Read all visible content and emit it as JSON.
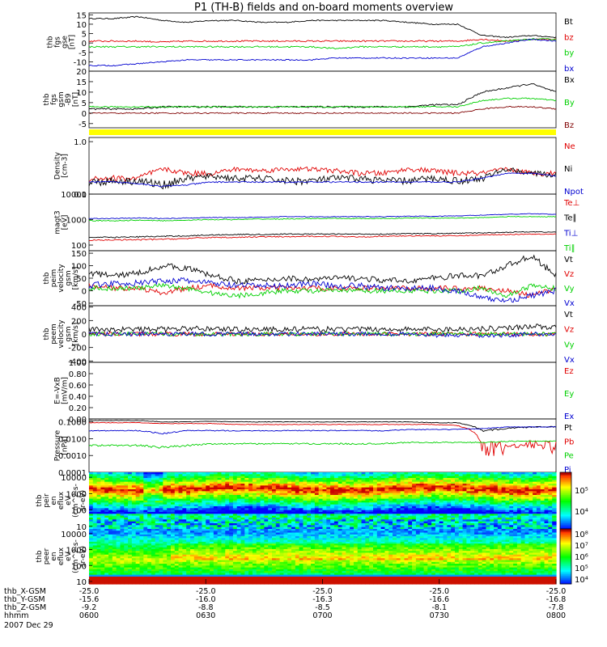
{
  "title": "P1 (TH-B) fields and on-board moments overview",
  "colors": {
    "black": "#000000",
    "red": "#e00000",
    "green": "#00d000",
    "blue": "#0000d0",
    "darkred": "#800000",
    "yellow": "#ffff00"
  },
  "chart_data": [
    {
      "id": "fgs",
      "type": "line",
      "ylabel": [
        "thb",
        "fgs",
        "gse",
        "[nT]"
      ],
      "ylim": [
        -15,
        16
      ],
      "yticks": [
        "-10",
        "-5",
        "0",
        "5",
        "10",
        "15"
      ],
      "ytick_values": [
        -10,
        -5,
        0,
        5,
        10,
        15
      ],
      "series": [
        {
          "name": "Bt",
          "color": "black",
          "base": [
            13,
            13,
            14,
            12,
            11,
            12,
            12,
            11,
            11,
            12,
            12,
            12,
            12,
            11,
            10,
            10,
            4,
            3,
            4,
            3
          ],
          "noise": 0.3
        },
        {
          "name": "bz",
          "color": "red",
          "base": [
            1,
            1,
            1,
            0.5,
            1,
            1,
            1,
            1,
            1,
            1,
            1,
            1,
            1,
            1,
            1,
            1,
            2,
            1,
            2,
            2
          ],
          "noise": 0.4
        },
        {
          "name": "by",
          "color": "green",
          "base": [
            -2,
            -2,
            -2,
            -2,
            -2,
            -2,
            -2,
            -2,
            -2,
            -2,
            -3,
            -2,
            -2,
            -2,
            -2,
            -2,
            0,
            1,
            2,
            2
          ],
          "noise": 0.4
        },
        {
          "name": "bx",
          "color": "blue",
          "base": [
            -12,
            -12,
            -11,
            -10,
            -9,
            -9,
            -9,
            -9,
            -9,
            -9,
            -8,
            -8,
            -8,
            -8,
            -8,
            -8,
            -2,
            0,
            2,
            1
          ],
          "noise": 0.3
        }
      ]
    },
    {
      "id": "fgs2",
      "type": "line",
      "ylabel": [
        "thb",
        "fgs",
        "gsm",
        "-B9",
        "[nT]"
      ],
      "ylim": [
        -7,
        20
      ],
      "yticks": [
        "-5",
        "0",
        "5",
        "10",
        "15",
        "20"
      ],
      "ytick_values": [
        -5,
        0,
        5,
        10,
        15,
        20
      ],
      "series": [
        {
          "name": "Bx",
          "color": "black",
          "base": [
            2,
            2,
            2,
            3,
            3,
            3,
            3,
            3,
            3,
            3,
            3,
            3,
            3,
            3,
            4,
            4,
            10,
            12,
            14,
            10
          ],
          "noise": 0.4
        },
        {
          "name": "By",
          "color": "green",
          "base": [
            3,
            3,
            3,
            3,
            3,
            3,
            3,
            3,
            3,
            3,
            3,
            3,
            3,
            3,
            3,
            3,
            6,
            7,
            7,
            6
          ],
          "noise": 0.3
        },
        {
          "name": "Bz",
          "color": "darkred",
          "base": [
            0,
            0,
            0,
            0,
            0,
            0,
            0,
            0,
            0,
            0,
            0,
            0,
            0,
            0,
            0,
            0,
            2,
            3,
            3,
            2
          ],
          "noise": 0.3
        }
      ]
    },
    {
      "id": "density",
      "type": "line",
      "log": true,
      "ylabel": [
        "Density",
        "[cm-3]"
      ],
      "ylim": [
        0.1,
        1.2
      ],
      "yticks": [
        "1.0",
        "0.1"
      ],
      "ytick_values": [
        1.0,
        0.1
      ],
      "series": [
        {
          "name": "Ne",
          "color": "red",
          "base": [
            0.2,
            0.2,
            0.2,
            0.3,
            0.25,
            0.25,
            0.3,
            0.28,
            0.3,
            0.3,
            0.28,
            0.25,
            0.25,
            0.3,
            0.28,
            0.25,
            0.25,
            0.3,
            0.25,
            0.25
          ],
          "noise": 0.03
        },
        {
          "name": "Ni",
          "color": "black",
          "base": [
            0.17,
            0.18,
            0.18,
            0.15,
            0.2,
            0.22,
            0.2,
            0.2,
            0.18,
            0.18,
            0.2,
            0.2,
            0.18,
            0.18,
            0.2,
            0.18,
            0.2,
            0.3,
            0.25,
            0.23
          ],
          "noise": 0.03
        },
        {
          "name": "Npot",
          "color": "blue",
          "base": [
            0.17,
            0.17,
            0.16,
            0.14,
            0.15,
            0.17,
            0.17,
            0.17,
            0.17,
            0.17,
            0.17,
            0.17,
            0.17,
            0.17,
            0.17,
            0.17,
            0.2,
            0.25,
            0.25,
            0.22
          ],
          "noise": 0.005
        }
      ]
    },
    {
      "id": "temp",
      "type": "line",
      "log": true,
      "ylabel": [
        "magt3",
        "[eV]"
      ],
      "ylim": [
        60,
        10000
      ],
      "yticks": [
        "10000",
        "1000",
        "100"
      ],
      "ytick_values": [
        10000,
        1000,
        100
      ],
      "series": [
        {
          "name": "Te⊥",
          "color": "red",
          "base": [
            150,
            160,
            160,
            170,
            180,
            200,
            200,
            210,
            210,
            220,
            220,
            210,
            220,
            230,
            230,
            230,
            250,
            260,
            270,
            270
          ],
          "noise": 10
        },
        {
          "name": "Te∥",
          "color": "black",
          "base": [
            200,
            200,
            210,
            220,
            230,
            250,
            260,
            260,
            270,
            270,
            270,
            270,
            270,
            280,
            280,
            290,
            300,
            320,
            330,
            320
          ],
          "noise": 12
        },
        {
          "name": "Ti⊥",
          "color": "blue",
          "base": [
            1100,
            1100,
            1150,
            1100,
            1150,
            1200,
            1200,
            1250,
            1300,
            1300,
            1300,
            1300,
            1300,
            1350,
            1350,
            1400,
            1500,
            1600,
            1700,
            1600
          ],
          "noise": 40
        },
        {
          "name": "Ti∥",
          "color": "green",
          "base": [
            900,
            900,
            950,
            900,
            950,
            1000,
            1000,
            1050,
            1050,
            1100,
            1100,
            1100,
            1100,
            1150,
            1150,
            1150,
            1200,
            1300,
            1300,
            1300
          ],
          "noise": 40
        }
      ]
    },
    {
      "id": "peim",
      "type": "line",
      "ylabel": [
        "thb",
        "peim",
        "velocity",
        "gsm",
        "[km/s]"
      ],
      "ylim": [
        -60,
        160
      ],
      "yticks": [
        "-50",
        "0",
        "50",
        "100",
        "150"
      ],
      "ytick_values": [
        -50,
        0,
        50,
        100,
        150
      ],
      "series": [
        {
          "name": "Vt",
          "color": "black",
          "base": [
            70,
            60,
            70,
            100,
            90,
            60,
            40,
            40,
            50,
            45,
            50,
            50,
            40,
            40,
            50,
            60,
            60,
            100,
            140,
            60
          ],
          "noise": 12
        },
        {
          "name": "Vz",
          "color": "red",
          "base": [
            20,
            10,
            10,
            -10,
            10,
            20,
            10,
            10,
            10,
            10,
            10,
            10,
            10,
            10,
            10,
            10,
            10,
            0,
            -20,
            10
          ],
          "noise": 10
        },
        {
          "name": "Vy",
          "color": "green",
          "base": [
            10,
            10,
            10,
            20,
            10,
            -10,
            -20,
            -10,
            0,
            0,
            0,
            0,
            0,
            0,
            0,
            0,
            10,
            -20,
            20,
            10
          ],
          "noise": 10
        },
        {
          "name": "Vx",
          "color": "blue",
          "base": [
            20,
            30,
            30,
            40,
            40,
            30,
            20,
            20,
            20,
            30,
            20,
            20,
            10,
            10,
            10,
            0,
            -30,
            -40,
            -20,
            0
          ],
          "noise": 12
        }
      ]
    },
    {
      "id": "peem",
      "type": "line",
      "ylabel": [
        "thb",
        "peem",
        "velocity",
        "gsm",
        "[km/s]"
      ],
      "ylim": [
        -420,
        420
      ],
      "yticks": [
        "-400",
        "-200",
        "0",
        "200",
        "400"
      ],
      "ytick_values": [
        -400,
        -200,
        0,
        200,
        400
      ],
      "series": [
        {
          "name": "Vt",
          "color": "black",
          "base": [
            70,
            70,
            70,
            70,
            80,
            80,
            70,
            70,
            70,
            70,
            70,
            70,
            70,
            70,
            70,
            70,
            80,
            90,
            120,
            90
          ],
          "noise": 40
        },
        {
          "name": "Vz",
          "color": "red",
          "base": [
            0,
            0,
            0,
            0,
            0,
            0,
            0,
            0,
            0,
            0,
            0,
            0,
            0,
            0,
            0,
            0,
            0,
            0,
            0,
            0
          ],
          "noise": 30
        },
        {
          "name": "Vy",
          "color": "green",
          "base": [
            0,
            0,
            0,
            0,
            0,
            0,
            0,
            0,
            0,
            0,
            0,
            0,
            0,
            0,
            0,
            0,
            0,
            0,
            0,
            0
          ],
          "noise": 30
        },
        {
          "name": "Vx",
          "color": "blue",
          "base": [
            0,
            0,
            0,
            0,
            0,
            0,
            0,
            0,
            0,
            0,
            0,
            0,
            0,
            0,
            -20,
            -20,
            -30,
            -20,
            0,
            0
          ],
          "noise": 30
        }
      ]
    },
    {
      "id": "efield",
      "type": "line",
      "ylabel": [
        "E=-VxB",
        "[mV/m]"
      ],
      "ylim": [
        0,
        1
      ],
      "yticks": [
        "0.00",
        "0.20",
        "0.40",
        "0.60",
        "0.80",
        "1.00"
      ],
      "ytick_values": [
        0,
        0.2,
        0.4,
        0.6,
        0.8,
        1.0
      ],
      "series": [
        {
          "name": "Ez",
          "color": "red",
          "base": [],
          "noise": 0
        },
        {
          "name": "Ey",
          "color": "green",
          "base": [],
          "noise": 0
        },
        {
          "name": "Ex",
          "color": "blue",
          "base": [],
          "noise": 0
        }
      ]
    },
    {
      "id": "pressure",
      "type": "line",
      "log": true,
      "ylabel": [
        "Pressure",
        "[nPa]"
      ],
      "ylim": [
        0.0001,
        0.15
      ],
      "yticks": [
        "0.1000",
        "0.0100",
        "0.0010",
        "0.0001"
      ],
      "ytick_values": [
        0.1,
        0.01,
        0.001,
        0.0001
      ],
      "series": [
        {
          "name": "Pt",
          "color": "black",
          "base": [
            0.12,
            0.12,
            0.12,
            0.1,
            0.1,
            0.11,
            0.1,
            0.1,
            0.1,
            0.1,
            0.1,
            0.1,
            0.1,
            0.1,
            0.09,
            0.09,
            0.03,
            0.04,
            0.05,
            0.05
          ],
          "noise": 0.004
        },
        {
          "name": "Pb",
          "color": "red",
          "base": [
            0.09,
            0.09,
            0.09,
            0.08,
            0.08,
            0.08,
            0.07,
            0.07,
            0.07,
            0.07,
            0.07,
            0.07,
            0.07,
            0.07,
            0.07,
            0.06,
            0.004,
            0.003,
            0.005,
            0.004
          ],
          "noise": 0.003
        },
        {
          "name": "Pe",
          "color": "green",
          "base": [
            0.004,
            0.004,
            0.004,
            0.003,
            0.004,
            0.005,
            0.005,
            0.005,
            0.005,
            0.005,
            0.005,
            0.005,
            0.005,
            0.006,
            0.006,
            0.006,
            0.006,
            0.007,
            0.007,
            0.007
          ],
          "noise": 0.0005
        },
        {
          "name": "Pi",
          "color": "blue",
          "base": [
            0.03,
            0.03,
            0.03,
            0.02,
            0.03,
            0.03,
            0.03,
            0.03,
            0.03,
            0.03,
            0.03,
            0.03,
            0.03,
            0.035,
            0.035,
            0.035,
            0.04,
            0.05,
            0.05,
            0.05
          ],
          "noise": 0.002
        }
      ]
    },
    {
      "id": "peir_spec",
      "type": "heatmap",
      "ylabel": [
        "thb",
        "peir",
        "en",
        "eflux",
        "eV",
        "(cm^2-s-",
        "sr-eV)"
      ],
      "yticks": [
        "10000",
        "1000",
        "100",
        "10"
      ],
      "ytick_values": [
        10000,
        1000,
        100,
        10
      ],
      "colorbar_ticks": [
        "10⁵",
        "10⁴"
      ]
    },
    {
      "id": "peer_spec",
      "type": "heatmap",
      "ylabel": [
        "thb",
        "peer",
        "en",
        "eflux",
        "eV",
        "(cm^2-s-",
        "sr-eV)"
      ],
      "yticks": [
        "10000",
        "1000",
        "100",
        "10"
      ],
      "ytick_values": [
        10000,
        1000,
        100,
        10
      ],
      "colorbar_ticks": [
        "10⁸",
        "10⁷",
        "10⁶",
        "10⁵",
        "10⁴"
      ]
    }
  ],
  "x_axis": {
    "rows": [
      {
        "label": "thb_X-GSM",
        "values": [
          "-25.0",
          "-25.0",
          "-25.0",
          "-25.0",
          "-25.0"
        ]
      },
      {
        "label": "thb_Y-GSM",
        "values": [
          "-15.6",
          "-16.0",
          "-16.3",
          "-16.6",
          "-16.8"
        ]
      },
      {
        "label": "thb_Z-GSM",
        "values": [
          "-9.2",
          "-8.8",
          "-8.5",
          "-8.1",
          "-7.8"
        ]
      },
      {
        "label": "hhmm",
        "values": [
          "0600",
          "0630",
          "0700",
          "0730",
          "0800"
        ]
      }
    ],
    "date": "2007 Dec 29"
  }
}
